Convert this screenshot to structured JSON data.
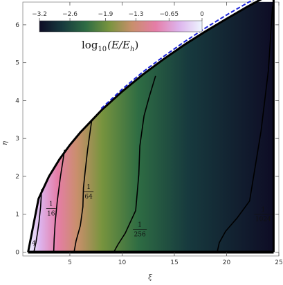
{
  "chart_data": {
    "type": "heatmap",
    "title": "",
    "xlabel": "ξ",
    "ylabel": "η",
    "xlim": [
      0.5,
      25
    ],
    "ylim": [
      -0.1,
      6.6
    ],
    "x_ticks": [
      "5",
      "10",
      "15",
      "20",
      "25"
    ],
    "y_ticks": [
      "0",
      "1",
      "2",
      "3",
      "4",
      "5",
      "6"
    ],
    "colorbar": {
      "label": "log10(E/Eh)",
      "label_base": "log",
      "label_sub": "10",
      "label_arg": "(E/E",
      "label_arg_sub": "h",
      "label_close": ")",
      "range": [
        -3.2,
        0
      ],
      "tick_labels": [
        "−3.2",
        "−2.6",
        "−1.9",
        "−1.3",
        "−0.65",
        "0"
      ],
      "tick_values": [
        -3.2,
        -2.6,
        -1.9,
        -1.3,
        -0.65,
        0
      ],
      "colormap": [
        "#0e0c25",
        "#173a3e",
        "#2e6c43",
        "#78943e",
        "#c98f6c",
        "#e57da7",
        "#ddb3ec",
        "#eef6ff"
      ]
    },
    "boundary": {
      "style": "solid-black",
      "x": [
        1.0,
        2.0,
        3.0,
        4.0,
        5.0,
        6.0,
        8.0,
        10.0,
        12.0,
        14.0,
        16.0,
        18.0,
        20.0,
        22.0,
        24.5
      ],
      "y": [
        0.0,
        1.41,
        2.0,
        2.45,
        2.83,
        3.16,
        3.74,
        4.24,
        4.69,
        5.1,
        5.48,
        5.83,
        6.16,
        6.48,
        6.85
      ]
    },
    "dashed_curve": {
      "style": "dashed-blue",
      "x": [
        8.0,
        10.0,
        12.0,
        14.0,
        16.0,
        18.0,
        20.0,
        22.0,
        24.5
      ],
      "y": [
        3.79,
        4.3,
        4.76,
        5.17,
        5.56,
        5.92,
        6.26,
        6.58,
        6.96
      ]
    },
    "contours": [
      {
        "label": "4",
        "label_x": 1.55,
        "label_y": 0.18,
        "x": [
          2.3,
          2.2,
          2.05,
          1.9,
          1.75,
          1.62,
          1.55
        ],
        "y": [
          1.66,
          1.2,
          0.8,
          0.5,
          0.25,
          0.08,
          0.0
        ]
      },
      {
        "label_num": "1",
        "label_den": "16",
        "label_x": 3.2,
        "label_y": 1.15,
        "x": [
          4.5,
          4.1,
          3.8,
          3.6,
          3.5,
          3.45
        ],
        "y": [
          2.7,
          2.0,
          1.35,
          0.8,
          0.35,
          0.0
        ]
      },
      {
        "label_num": "1",
        "label_den": "64",
        "label_x": 6.8,
        "label_y": 1.6,
        "x": [
          7.1,
          6.7,
          6.45,
          6.3,
          6.25,
          6.0,
          5.6,
          5.4
        ],
        "y": [
          3.5,
          2.7,
          2.1,
          1.7,
          1.2,
          0.7,
          0.3,
          0.0
        ]
      },
      {
        "label_num": "1",
        "label_den": "256",
        "label_x": 11.7,
        "label_y": 0.6,
        "x": [
          13.2,
          12.6,
          12.1,
          11.7,
          11.6,
          11.3,
          10.3,
          9.6,
          9.2
        ],
        "y": [
          4.65,
          4.1,
          3.6,
          2.8,
          2.05,
          1.1,
          0.5,
          0.2,
          0.0
        ]
      },
      {
        "label_num": "1",
        "label_den": "1024",
        "label_x": 23.5,
        "label_y": 1.0,
        "x": [
          24.4,
          24.0,
          23.3,
          22.2,
          21.0,
          19.9,
          19.3,
          19.1
        ],
        "y": [
          6.5,
          4.8,
          3.2,
          1.35,
          0.9,
          0.55,
          0.25,
          0.0
        ]
      }
    ]
  }
}
